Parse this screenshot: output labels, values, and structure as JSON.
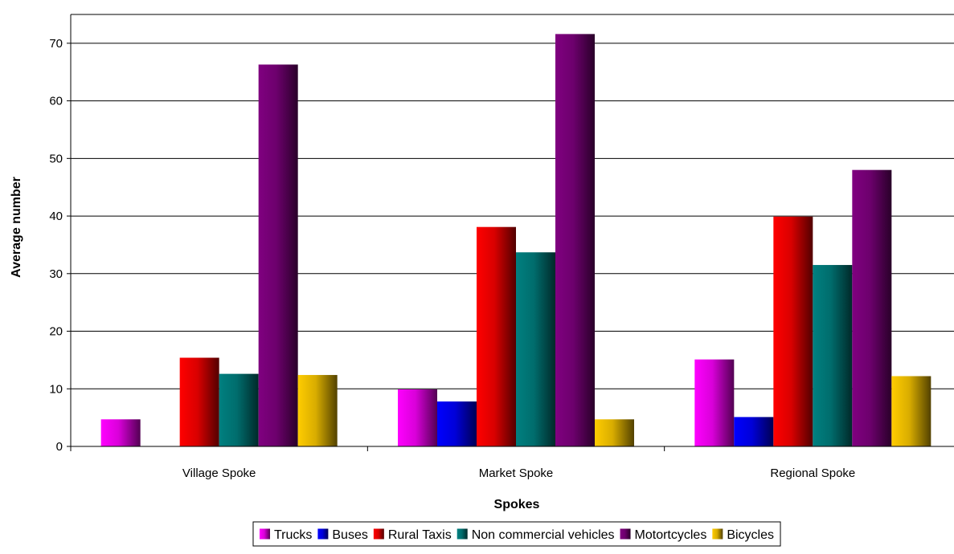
{
  "chart_data": {
    "type": "bar",
    "title": "",
    "xlabel": "Spokes",
    "ylabel": "Average number",
    "categories": [
      "Village Spoke",
      "Market Spoke",
      "Regional Spoke"
    ],
    "ylim": [
      0,
      75
    ],
    "yticks": [
      0,
      10,
      20,
      30,
      40,
      50,
      60,
      70
    ],
    "grid": true,
    "legend_position": "bottom",
    "series": [
      {
        "name": "Trucks",
        "color": "#FF00FF",
        "values": [
          4.7,
          9.9,
          15.1
        ]
      },
      {
        "name": "Buses",
        "color": "#0000FF",
        "values": [
          0,
          7.8,
          5.1
        ]
      },
      {
        "name": "Rural Taxis",
        "color": "#FF0000",
        "values": [
          15.4,
          38.1,
          39.9
        ]
      },
      {
        "name": "Non commercial vehicles",
        "color": "#008080",
        "values": [
          12.6,
          33.7,
          31.5
        ]
      },
      {
        "name": "Motortcycles",
        "color": "#800080",
        "values": [
          66.3,
          71.6,
          48.0
        ]
      },
      {
        "name": "Bicycles",
        "color": "#FFCC00",
        "values": [
          12.4,
          4.7,
          12.2
        ]
      }
    ]
  }
}
